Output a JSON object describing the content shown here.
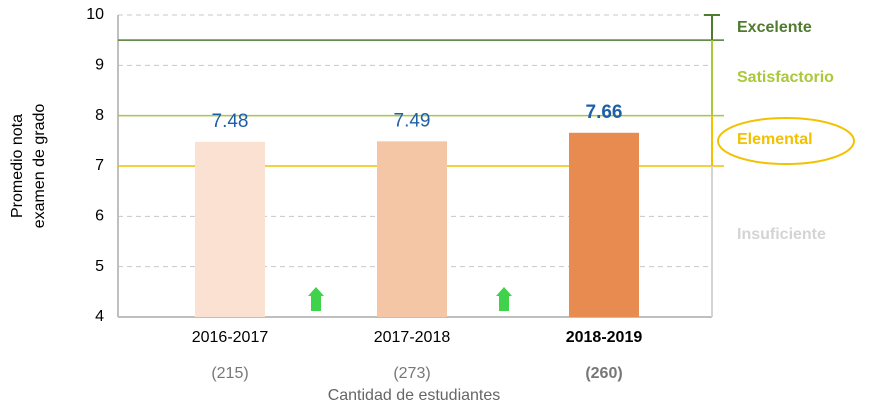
{
  "chart_data": {
    "type": "bar",
    "categories": [
      "2016-2017",
      "2017-2018",
      "2018-2019"
    ],
    "category_sublabels": [
      "(215)",
      "(273)",
      "(260)"
    ],
    "values": [
      7.48,
      7.49,
      7.66
    ],
    "colors": [
      "#fbe1d1",
      "#f5c6a5",
      "#e88b50"
    ],
    "highlight_index": 2,
    "xlabel": "Cantidad de estudiantes",
    "ylabel": [
      "Promedio nota",
      "examen de grado"
    ],
    "ylim": [
      4,
      10
    ],
    "yticks": [
      4,
      5,
      6,
      7,
      8,
      9,
      10
    ],
    "grid": true,
    "bands": [
      {
        "name": "Excelente",
        "lower": 9.5,
        "upper": 10,
        "color": "#4f7b2f"
      },
      {
        "name": "Satisfactorio",
        "lower": 8,
        "upper": 9.5,
        "color": "#a9c83a"
      },
      {
        "name": "Elemental",
        "lower": 7,
        "upper": 8,
        "color": "#f2c100"
      },
      {
        "name": "Insuficiente",
        "lower": 4,
        "upper": 7,
        "color": "#d4d4d4"
      }
    ]
  }
}
